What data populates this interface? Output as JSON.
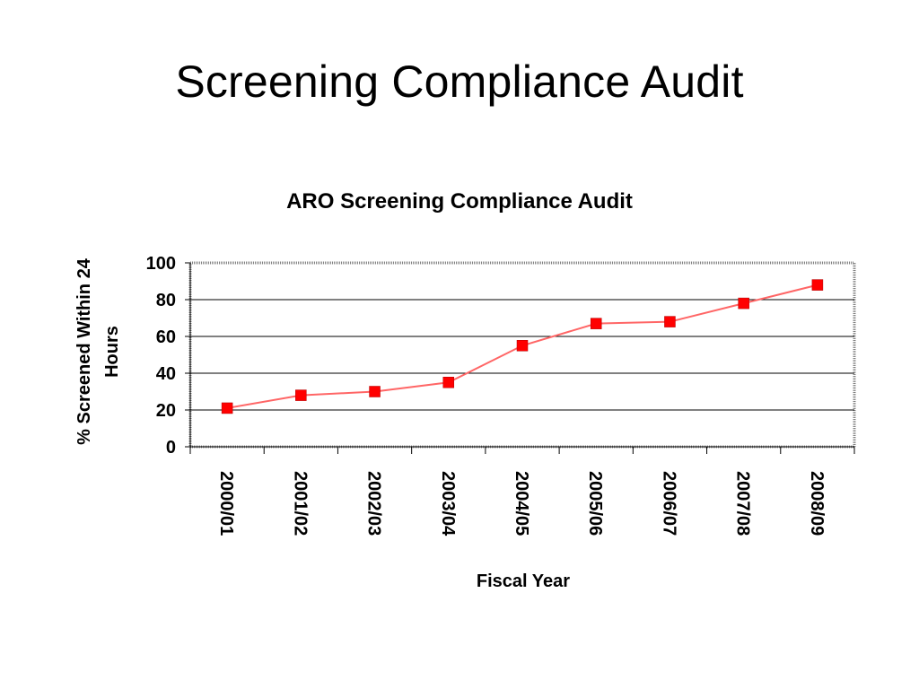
{
  "slide": {
    "title": "Screening Compliance Audit"
  },
  "colors": {
    "series": "#ff0000",
    "line": "#ff6666",
    "grid": "#000000"
  },
  "chart_data": {
    "type": "line",
    "title": "ARO Screening Compliance Audit",
    "xlabel": "Fiscal Year",
    "ylabel": "% Screened Within 24 Hours",
    "categories": [
      "2000/01",
      "2001/02",
      "2002/03",
      "2003/04",
      "2004/05",
      "2005/06",
      "2006/07",
      "2007/08",
      "2008/09"
    ],
    "series": [
      {
        "values": [
          21,
          28,
          30,
          35,
          55,
          67,
          68,
          78,
          88
        ]
      }
    ],
    "yticks": [
      0,
      20,
      40,
      60,
      80,
      100
    ],
    "ylim": [
      0,
      100
    ],
    "grid": true,
    "legend": "none"
  }
}
